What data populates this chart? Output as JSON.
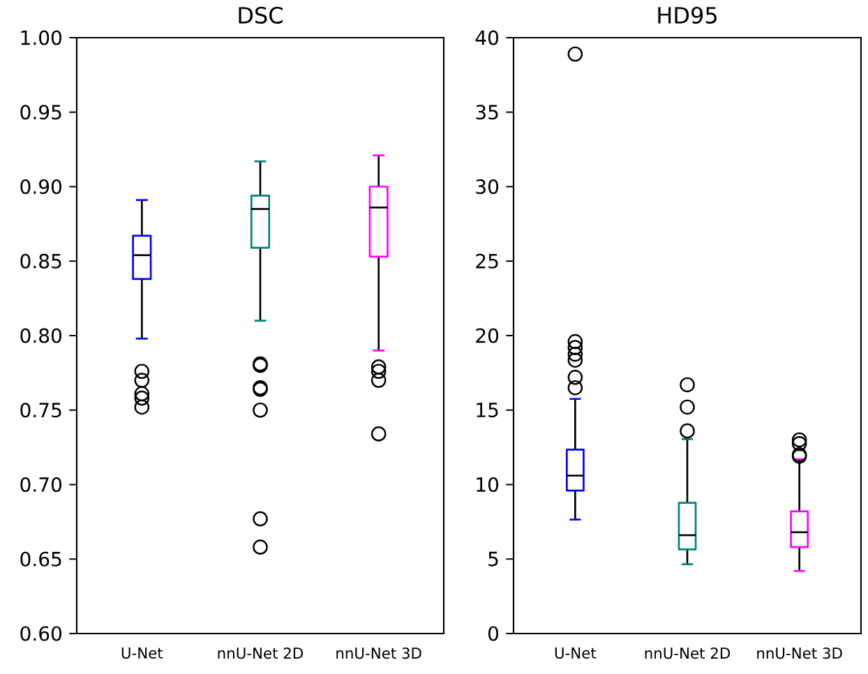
{
  "chart_data": [
    {
      "type": "box",
      "title": "DSC",
      "categories": [
        "U-Net",
        "nnU-Net 2D",
        "nnU-Net 3D"
      ],
      "colors": [
        "#0000ff",
        "#008080",
        "#ff00ff"
      ],
      "boxes": [
        {
          "low": 0.798,
          "q1": 0.838,
          "median": 0.854,
          "q3": 0.867,
          "high": 0.891,
          "outliers": [
            0.776,
            0.77,
            0.761,
            0.758,
            0.752
          ]
        },
        {
          "low": 0.81,
          "q1": 0.859,
          "median": 0.885,
          "q3": 0.894,
          "high": 0.917,
          "outliers": [
            0.781,
            0.78,
            0.765,
            0.764,
            0.75,
            0.677,
            0.658
          ]
        },
        {
          "low": 0.79,
          "q1": 0.853,
          "median": 0.886,
          "q3": 0.9,
          "high": 0.921,
          "outliers": [
            0.779,
            0.776,
            0.77,
            0.734
          ]
        }
      ],
      "ylim": [
        0.6,
        1.0
      ],
      "yticks": [
        {
          "value": 0.6,
          "label": "0.60"
        },
        {
          "value": 0.65,
          "label": "0.65"
        },
        {
          "value": 0.7,
          "label": "0.70"
        },
        {
          "value": 0.75,
          "label": "0.75"
        },
        {
          "value": 0.8,
          "label": "0.80"
        },
        {
          "value": 0.85,
          "label": "0.85"
        },
        {
          "value": 0.9,
          "label": "0.90"
        },
        {
          "value": 0.95,
          "label": "0.95"
        },
        {
          "value": 1.0,
          "label": "1.00"
        }
      ]
    },
    {
      "type": "box",
      "title": "HD95",
      "categories": [
        "U-Net",
        "nnU-Net 2D",
        "nnU-Net 3D"
      ],
      "colors": [
        "#0000ff",
        "#008080",
        "#ff00ff"
      ],
      "boxes": [
        {
          "low": 7.65,
          "q1": 9.6,
          "median": 10.6,
          "q3": 12.35,
          "high": 15.75,
          "outliers": [
            38.9,
            19.6,
            19.2,
            18.75,
            18.35,
            17.2,
            16.5
          ]
        },
        {
          "low": 4.65,
          "q1": 5.65,
          "median": 6.6,
          "q3": 8.78,
          "high": 13.05,
          "outliers": [
            16.7,
            15.2,
            13.6
          ]
        },
        {
          "low": 4.2,
          "q1": 5.8,
          "median": 6.8,
          "q3": 8.2,
          "high": 11.7,
          "outliers": [
            13.0,
            12.75,
            12.0,
            11.9
          ]
        }
      ],
      "ylim": [
        0,
        40
      ],
      "yticks": [
        0,
        5,
        10,
        15,
        20,
        25,
        30,
        35,
        40
      ]
    }
  ]
}
